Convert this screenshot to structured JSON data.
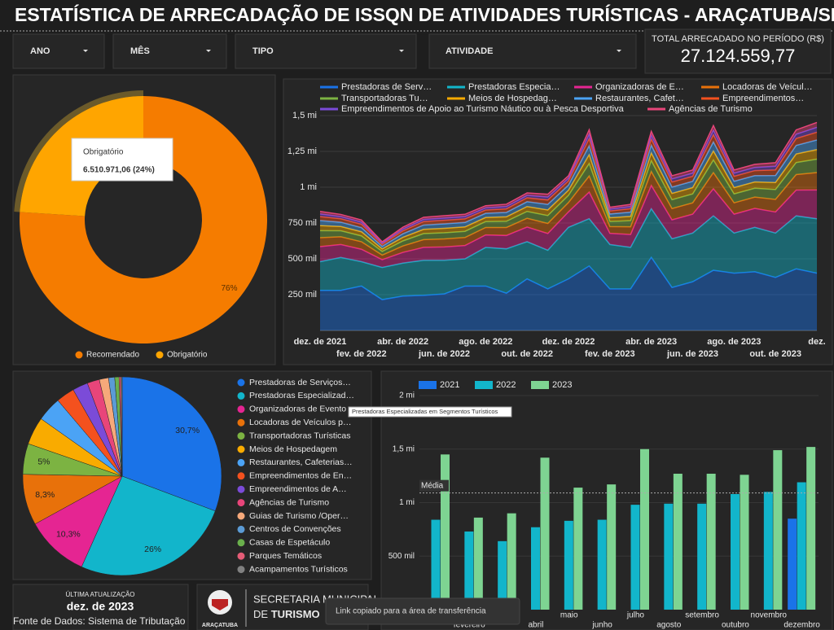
{
  "header": {
    "title": "ESTATÍSTICA DE ARRECADAÇÃO DE ISSQN DE ATIVIDADES TURÍSTICAS -  ARAÇATUBA/SP"
  },
  "filters": [
    "ANO",
    "MÊS",
    "TIPO",
    "ATIVIDADE"
  ],
  "kpi": {
    "label": "TOTAL ARRECADADO NO PERÍODO (R$)",
    "value": "27.124.559,77"
  },
  "chart_data": [
    {
      "type": "donut",
      "categories": [
        "Recomendado",
        "Obrigatório"
      ],
      "values": [
        76,
        24
      ],
      "value_labels": [
        "76%",
        "24%"
      ],
      "colors": [
        "#f57c00",
        "#ffa500"
      ],
      "legend": "bottom",
      "tooltip": {
        "title": "Obrigatório",
        "text": "6.510.971,06 (24%)"
      }
    },
    {
      "type": "area",
      "stacked": true,
      "legend": "top",
      "grid": true,
      "categories": [
        "dez. de 2021",
        null,
        "fev. de 2022",
        null,
        "abr. de 2022",
        null,
        "jun. de 2022",
        null,
        "ago. de 2022",
        null,
        "out. de 2022",
        null,
        "dez. de 2022",
        null,
        "fev. de 2023",
        null,
        "abr. de 2023",
        null,
        "jun. de 2023",
        null,
        "ago. de 2023",
        null,
        "out. de 2023",
        null,
        "dez."
      ],
      "ylim": [
        0,
        1500000
      ],
      "yticks": [
        {
          "value": 250000,
          "label": "250 mil"
        },
        {
          "value": 500000,
          "label": "500 mil"
        },
        {
          "value": 750000,
          "label": "750 mil"
        },
        {
          "value": 1000000,
          "label": "1 mi"
        },
        {
          "value": 1250000,
          "label": "1,25 mi"
        },
        {
          "value": 1500000,
          "label": "1,5 mi"
        }
      ],
      "series": [
        {
          "name": "Prestadoras de Serv…",
          "color": "#1a73e8",
          "values": [
            280000,
            280000,
            310000,
            215000,
            240000,
            245000,
            255000,
            310000,
            310000,
            260000,
            360000,
            290000,
            360000,
            450000,
            290000,
            290000,
            510000,
            300000,
            340000,
            420000,
            400000,
            410000,
            370000,
            430000,
            400000
          ]
        },
        {
          "name": "Prestadoras Especia…",
          "color": "#12b5cb",
          "values": [
            200000,
            230000,
            170000,
            225000,
            230000,
            245000,
            235000,
            190000,
            270000,
            310000,
            260000,
            270000,
            360000,
            330000,
            310000,
            290000,
            340000,
            340000,
            340000,
            380000,
            280000,
            310000,
            310000,
            370000,
            380000
          ]
        },
        {
          "name": "Organizadoras de E…",
          "color": "#e52592",
          "values": [
            105000,
            90000,
            87000,
            54000,
            75000,
            90000,
            93000,
            93000,
            87000,
            93000,
            102000,
            117000,
            108000,
            186000,
            78000,
            90000,
            162000,
            132000,
            132000,
            189000,
            132000,
            132000,
            147000,
            180000,
            201000
          ]
        },
        {
          "name": "Locadoras de Veícul…",
          "color": "#e8710a",
          "values": [
            63000,
            54000,
            52000,
            32000,
            45000,
            54000,
            56000,
            56000,
            52000,
            56000,
            61000,
            70000,
            65000,
            112000,
            47000,
            54000,
            97000,
            79000,
            79000,
            113000,
            79000,
            79000,
            88000,
            108000,
            121000
          ]
        },
        {
          "name": "Transportadoras Tu…",
          "color": "#7cb342",
          "values": [
            49000,
            42000,
            41000,
            25000,
            35000,
            42000,
            43000,
            43000,
            41000,
            43000,
            48000,
            55000,
            50000,
            87000,
            36000,
            42000,
            76000,
            62000,
            62000,
            88000,
            62000,
            62000,
            69000,
            84000,
            94000
          ]
        },
        {
          "name": "Meios de Hospedag…",
          "color": "#f9ab00",
          "values": [
            35000,
            30000,
            29000,
            18000,
            25000,
            30000,
            31000,
            31000,
            29000,
            31000,
            34000,
            39000,
            36000,
            62000,
            26000,
            30000,
            54000,
            44000,
            44000,
            63000,
            44000,
            44000,
            49000,
            60000,
            67000
          ]
        },
        {
          "name": "Restaurantes, Cafet…",
          "color": "#4ba3f5",
          "values": [
            35000,
            30000,
            29000,
            18000,
            25000,
            30000,
            31000,
            31000,
            29000,
            31000,
            34000,
            39000,
            36000,
            62000,
            26000,
            30000,
            54000,
            44000,
            44000,
            63000,
            44000,
            44000,
            49000,
            60000,
            67000
          ]
        },
        {
          "name": "Empreendimentos…",
          "color": "#f4511e",
          "values": [
            28000,
            24000,
            23000,
            14000,
            20000,
            24000,
            25000,
            25000,
            23000,
            25000,
            27000,
            31000,
            29000,
            50000,
            21000,
            24000,
            43000,
            35000,
            35000,
            50000,
            35000,
            35000,
            39000,
            48000,
            54000
          ]
        },
        {
          "name": "Empreendimentos de Apoio ao Turismo Náutico ou à Pesca Desportiva",
          "color": "#7b4bd8",
          "values": [
            18000,
            15000,
            15000,
            9000,
            13000,
            15000,
            16000,
            16000,
            15000,
            16000,
            17000,
            20000,
            18000,
            31000,
            13000,
            15000,
            27000,
            22000,
            22000,
            32000,
            22000,
            22000,
            25000,
            30000,
            34000
          ]
        },
        {
          "name": "Agências de Turismo",
          "color": "#e8457a",
          "values": [
            18000,
            15000,
            15000,
            9000,
            13000,
            15000,
            16000,
            16000,
            15000,
            16000,
            17000,
            20000,
            18000,
            31000,
            13000,
            15000,
            27000,
            22000,
            22000,
            32000,
            22000,
            22000,
            25000,
            30000,
            34000
          ]
        }
      ]
    },
    {
      "type": "pie",
      "legend": "right",
      "categories": [
        "Prestadoras de Serviços…",
        "Prestadoras Especializad…",
        "Organizadoras de Evento",
        "Locadoras de Veículos p…",
        "Transportadoras Turísticas",
        "Meios de Hospedagem",
        "Restaurantes, Cafeterias…",
        "Empreendimentos de En…",
        "Empreendimentos de A…",
        "Agências de Turismo",
        "Guias de Turismo /Oper…",
        "Centros de Convenções",
        "Casas de Espetáculo",
        "Parques Temáticos",
        "Acampamentos Turísticos"
      ],
      "values": [
        30.7,
        26,
        10.3,
        8.3,
        5,
        4.5,
        4,
        3,
        2.5,
        2,
        1.5,
        1,
        0.7,
        0.3,
        0.2
      ],
      "value_labels": [
        "30,7%",
        "26%",
        "10,3%",
        "8,3%",
        "5%",
        null,
        null,
        null,
        null,
        null,
        null,
        null,
        null,
        null,
        null
      ],
      "colors": [
        "#1a73e8",
        "#12b5cb",
        "#e52592",
        "#e8710a",
        "#7cb342",
        "#f9ab00",
        "#4ba3f5",
        "#f4511e",
        "#7b4bd8",
        "#e8457a",
        "#f6a97a",
        "#5b9bd5",
        "#6ab04c",
        "#e45c76",
        "#808080"
      ],
      "tooltip": "Prestadoras Especializadas em Segmentos Turísticos"
    },
    {
      "type": "bar",
      "legend": "top",
      "grid": true,
      "categories": [
        null,
        "fevereiro",
        null,
        "abril",
        "maio",
        "junho",
        "julho",
        "agosto",
        "setembro",
        "outubro",
        "novembro",
        "dezembro"
      ],
      "ylim": [
        0,
        2000000
      ],
      "yticks": [
        {
          "value": 500000,
          "label": "500 mil"
        },
        {
          "value": 1000000,
          "label": "1 mi"
        },
        {
          "value": 1500000,
          "label": "1,5 mi"
        },
        {
          "value": 2000000,
          "label": "2 mi"
        }
      ],
      "reference_line": {
        "label": "Média",
        "value": 1090000
      },
      "series": [
        {
          "name": "2021",
          "color": "#1a73e8",
          "values": [
            null,
            null,
            null,
            null,
            null,
            null,
            null,
            null,
            null,
            null,
            null,
            850000
          ]
        },
        {
          "name": "2022",
          "color": "#12b5cb",
          "values": [
            840000,
            730000,
            640000,
            770000,
            830000,
            840000,
            980000,
            990000,
            990000,
            1080000,
            1100000,
            1190000
          ]
        },
        {
          "name": "2023",
          "color": "#7ed492",
          "values": [
            1450000,
            860000,
            900000,
            1420000,
            1140000,
            1170000,
            1500000,
            1270000,
            1270000,
            1260000,
            1490000,
            1520000
          ]
        }
      ]
    }
  ],
  "footer": {
    "update_label": "ÚLTIMA ATUALIZAÇÃO",
    "update_value": "dez. de 2023",
    "source": "Fonte de Dados: Sistema de Tributação"
  },
  "logo": {
    "city": "ARAÇATUBA",
    "line1": "SECRETARIA MUNICIPAL",
    "line2_prefix": "DE",
    "line2_bold": "TURISMO"
  },
  "toast": "Link copiado para a área de transferência"
}
